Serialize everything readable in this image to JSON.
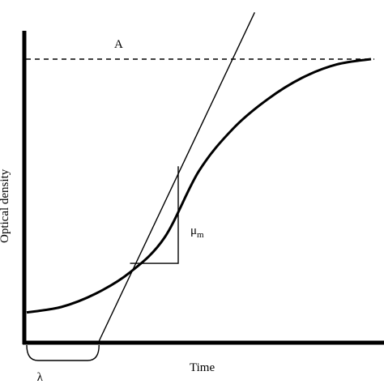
{
  "chart_data": {
    "type": "line",
    "title": "",
    "xlabel": "Time",
    "ylabel": "Optical density",
    "grid": false,
    "legend": "none",
    "curve": {
      "model": "sigmoidal growth curve",
      "points": [
        {
          "x": 0,
          "y": 0.05
        },
        {
          "x": 1,
          "y": 0.07
        },
        {
          "x": 2,
          "y": 0.12
        },
        {
          "x": 3,
          "y": 0.2
        },
        {
          "x": 4,
          "y": 0.33
        },
        {
          "x": 5,
          "y": 0.58
        },
        {
          "x": 6,
          "y": 0.74
        },
        {
          "x": 7,
          "y": 0.85
        },
        {
          "x": 8,
          "y": 0.93
        },
        {
          "x": 9,
          "y": 0.98
        },
        {
          "x": 10,
          "y": 1.0
        }
      ]
    },
    "asymptote": {
      "label": "A",
      "y": 1.0
    },
    "tangent": {
      "x_intercept": 2.1,
      "slope_per_unit_x": 0.26
    },
    "slope_triangle": {
      "label_main": "μ",
      "label_sub": "m",
      "x1": 3.0,
      "x2": 4.4
    },
    "lag": {
      "label": "λ",
      "x_start": 0,
      "x_end": 2.1
    },
    "colors": {
      "line": "#000000",
      "background": "#ffffff"
    }
  }
}
